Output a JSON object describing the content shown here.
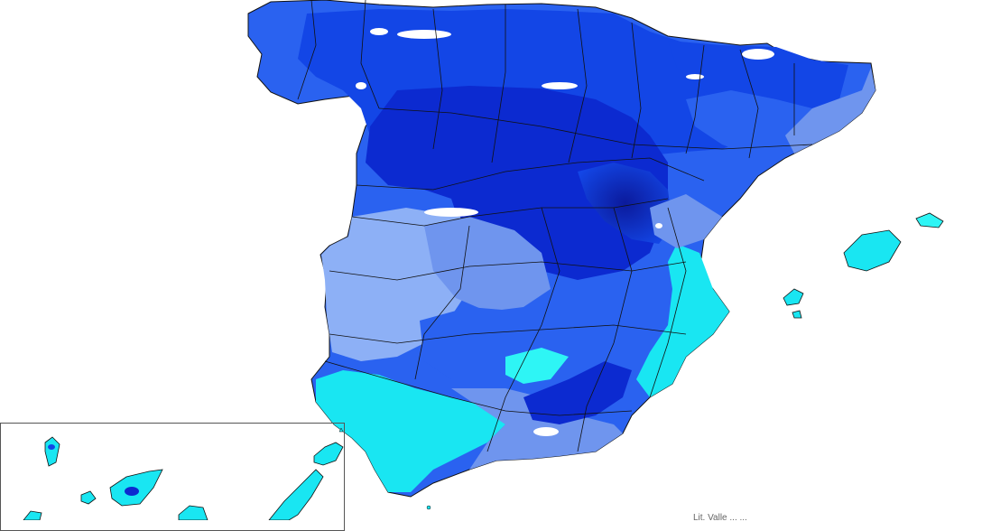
{
  "map": {
    "subject": "Spain temperature/precipitation classes",
    "palette": {
      "white": "#ffffff",
      "darkest": "#0b1a9c",
      "dark": "#0c2ad0",
      "medium_dark": "#1346e6",
      "medium": "#2a62f0",
      "light": "#6f95ee",
      "pale": "#8db0f6",
      "cyan": "#19e6f2",
      "cyan_bright": "#2ef5f5",
      "border": "#111111"
    },
    "credit": "Lit. Valle   ...   ..."
  }
}
